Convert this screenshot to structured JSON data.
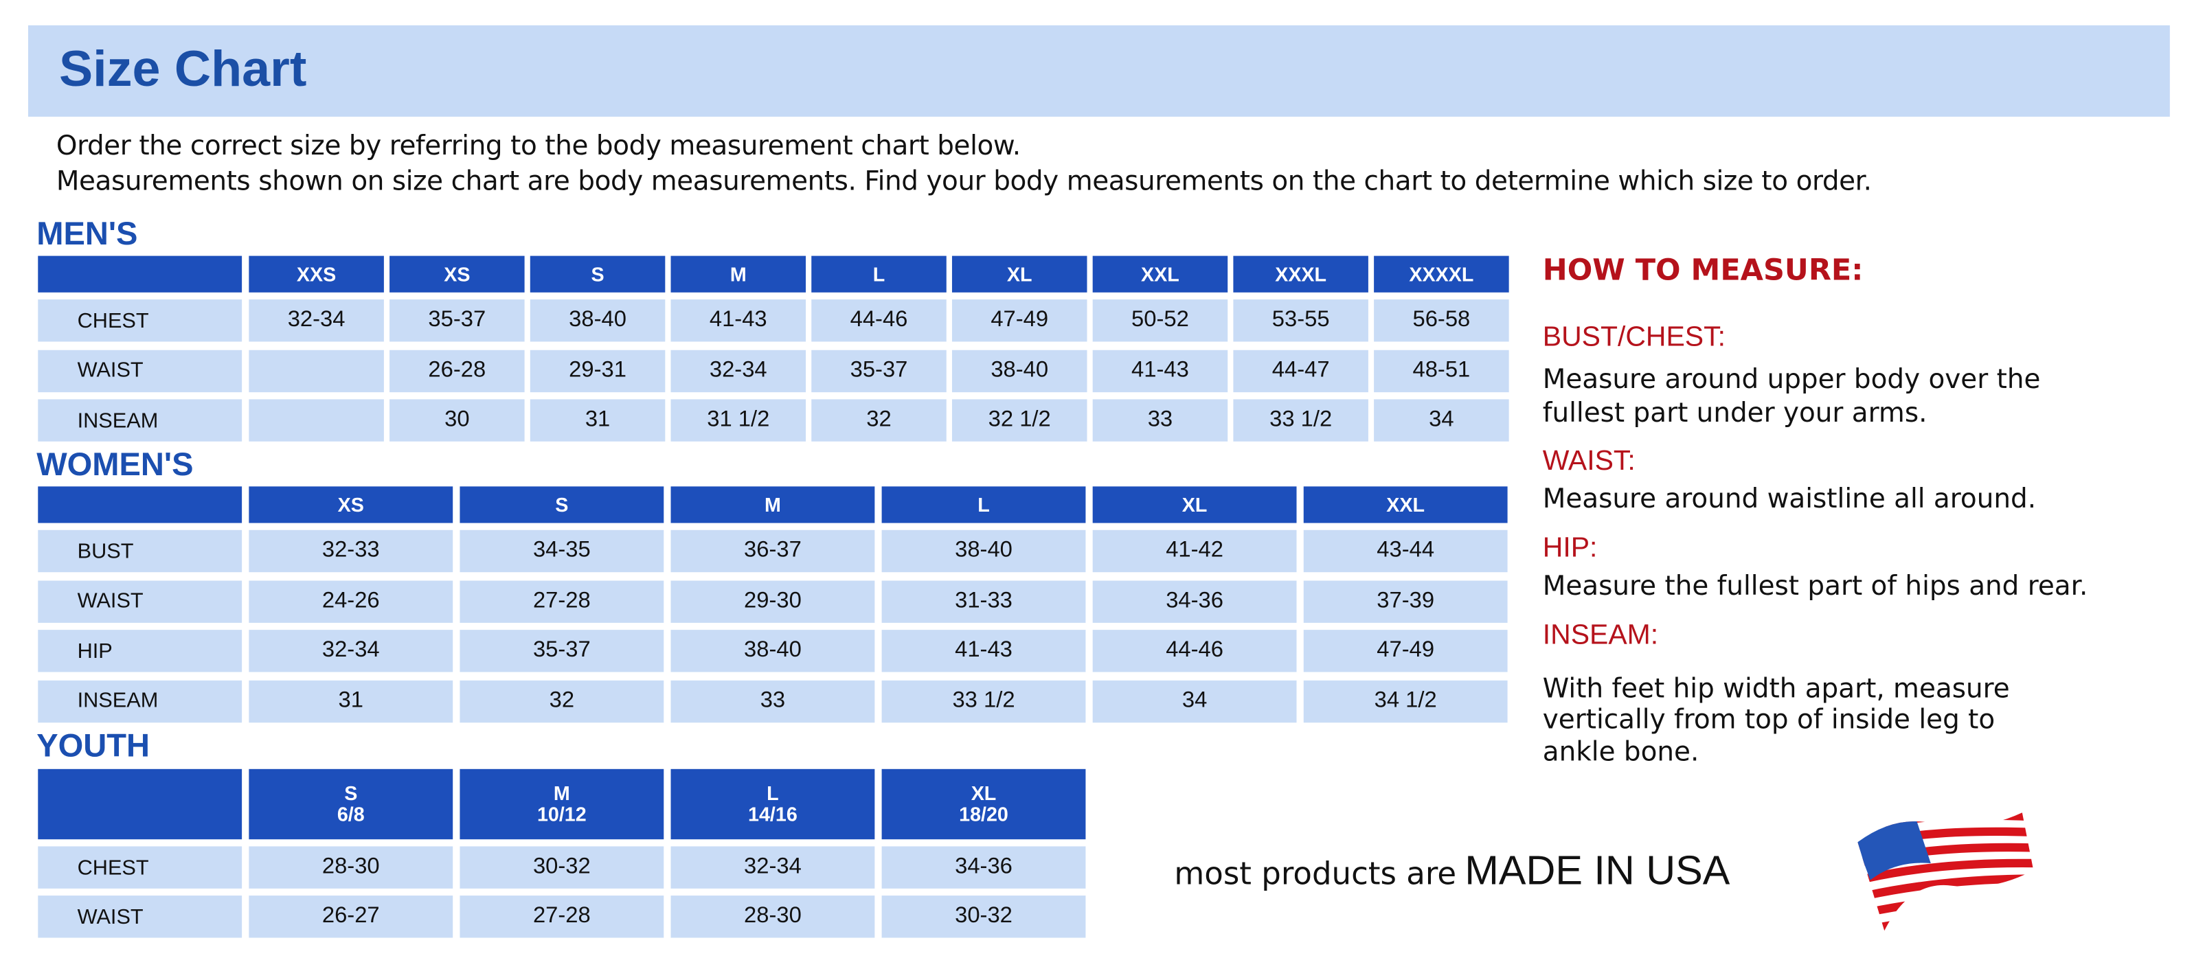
{
  "header": {
    "title": "Size Chart"
  },
  "intro": [
    "Order the correct size by referring to the body measurement chart below.",
    "Measurements shown on size chart are body measurements.  Find your body measurements on the chart to determine which size to order."
  ],
  "mens": {
    "label": "MEN'S",
    "sizes": [
      "XXS",
      "XS",
      "S",
      "M",
      "L",
      "XL",
      "XXL",
      "XXXL",
      "XXXXL"
    ],
    "rows": [
      {
        "label": "CHEST",
        "values": [
          "32-34",
          "35-37",
          "38-40",
          "41-43",
          "44-46",
          "47-49",
          "50-52",
          "53-55",
          "56-58"
        ]
      },
      {
        "label": "WAIST",
        "values": [
          "",
          "26-28",
          "29-31",
          "32-34",
          "35-37",
          "38-40",
          "41-43",
          "44-47",
          "48-51"
        ]
      },
      {
        "label": "INSEAM",
        "values": [
          "",
          "30",
          "31",
          "31 1/2",
          "32",
          "32 1/2",
          "33",
          "33 1/2",
          "34"
        ]
      }
    ]
  },
  "womens": {
    "label": "WOMEN'S",
    "sizes": [
      "XS",
      "S",
      "M",
      "L",
      "XL",
      "XXL"
    ],
    "rows": [
      {
        "label": "BUST",
        "values": [
          "32-33",
          "34-35",
          "36-37",
          "38-40",
          "41-42",
          "43-44"
        ]
      },
      {
        "label": "WAIST",
        "values": [
          "24-26",
          "27-28",
          "29-30",
          "31-33",
          "34-36",
          "37-39"
        ]
      },
      {
        "label": "HIP",
        "values": [
          "32-34",
          "35-37",
          "38-40",
          "41-43",
          "44-46",
          "47-49"
        ]
      },
      {
        "label": "INSEAM",
        "values": [
          "31",
          "32",
          "33",
          "33 1/2",
          "34",
          "34 1/2"
        ]
      }
    ]
  },
  "youth": {
    "label": "YOUTH",
    "sizes": [
      {
        "size": "S",
        "range": "6/8"
      },
      {
        "size": "M",
        "range": "10/12"
      },
      {
        "size": "L",
        "range": "14/16"
      },
      {
        "size": "XL",
        "range": "18/20"
      }
    ],
    "rows": [
      {
        "label": "CHEST",
        "values": [
          "28-30",
          "30-32",
          "32-34",
          "34-36"
        ]
      },
      {
        "label": "WAIST",
        "values": [
          "26-27",
          "27-28",
          "28-30",
          "30-32"
        ]
      }
    ]
  },
  "how_to_measure": {
    "title": "HOW TO MEASURE:",
    "bust_label": "BUST/CHEST:",
    "bust_text": [
      "Measure around upper body over the",
      "fullest part under your arms."
    ],
    "waist_label": "WAIST:",
    "waist_text": "Measure around waistline all around.",
    "hip_label": "HIP:",
    "hip_text": "Measure the fullest part of hips and rear.",
    "inseam_label": "INSEAM:",
    "inseam_text": [
      "With feet hip width apart, measure",
      "vertically from top of inside leg to",
      "ankle bone."
    ]
  },
  "footer": {
    "prefix": "most products are",
    "emphasis": "MADE IN USA",
    "flag_icon": "us-flag-icon"
  },
  "colors": {
    "header_blue": "#1d4fbb",
    "cell_blue": "#c9dcf6",
    "band": "#c6daf6",
    "accent_red": "#b5121b",
    "title_blue": "#1b4fa6"
  }
}
